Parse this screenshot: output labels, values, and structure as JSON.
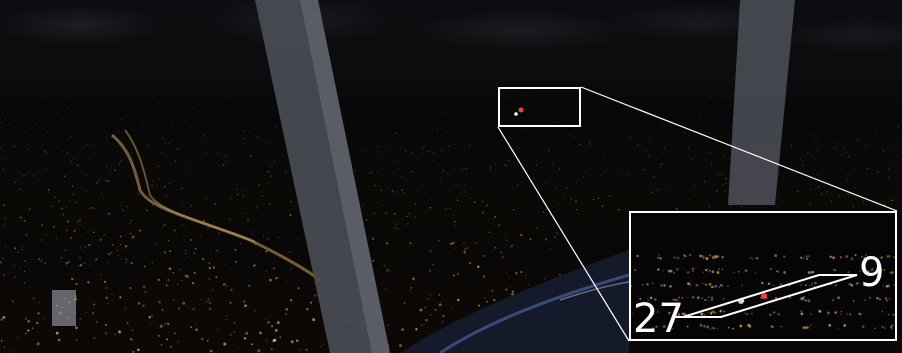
{
  "scene": "night-flight-sim-cockpit-view",
  "inset": {
    "runway_label_left": "27",
    "runway_label_right": "9"
  },
  "colors": {
    "city_light": "#e0a440",
    "runway_light": "#ff3b2f",
    "highlight_box": "#ffffff",
    "strut": "#5a5d66"
  }
}
